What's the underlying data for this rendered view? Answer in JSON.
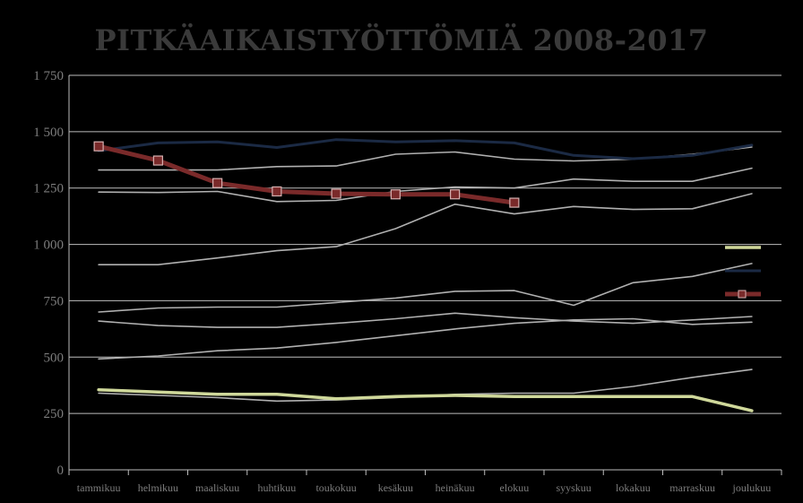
{
  "chart_data": {
    "type": "line",
    "title": "PITKÄAIKAISTYÖTTÖMIÄ 2008-2017",
    "xlabel": "",
    "ylabel": "",
    "categories": [
      "tammikuu",
      "helmikuu",
      "maaliskuu",
      "huhtikuu",
      "toukokuu",
      "kesäkuu",
      "heinäkuu",
      "elokuu",
      "syyskuu",
      "lokakuu",
      "marraskuu",
      "joulukuu"
    ],
    "ylim": [
      0,
      1750
    ],
    "yticks": [
      0,
      250,
      500,
      750,
      1000,
      1250,
      1500,
      1750
    ],
    "ytick_labels": [
      "0",
      "250",
      "500",
      "750",
      "1 000",
      "1 250",
      "1 500",
      "1 750"
    ],
    "grid": true,
    "legend": "right",
    "series": [
      {
        "color": "#cfd89a",
        "width": 3.5,
        "marker": "none",
        "values": [
          355,
          345,
          335,
          335,
          315,
          325,
          330,
          325,
          325,
          325,
          325,
          262
        ]
      },
      {
        "color": "#1b2a44",
        "width": 3,
        "marker": "none",
        "values": [
          1415,
          1450,
          1455,
          1430,
          1465,
          1455,
          1460,
          1450,
          1395,
          1380,
          1395,
          1440
        ]
      },
      {
        "color": "#b0b0b0",
        "width": 1.6,
        "marker": "none",
        "values": [
          340,
          330,
          320,
          305,
          310,
          320,
          335,
          340,
          340,
          370,
          410,
          445
        ]
      },
      {
        "color": "#b0b0b0",
        "width": 1.6,
        "marker": "none",
        "values": [
          492,
          505,
          528,
          540,
          565,
          595,
          625,
          650,
          665,
          670,
          645,
          655
        ]
      },
      {
        "color": "#b0b0b0",
        "width": 1.6,
        "marker": "none",
        "values": [
          660,
          640,
          632,
          632,
          650,
          670,
          695,
          675,
          660,
          650,
          665,
          680
        ]
      },
      {
        "color": "#b0b0b0",
        "width": 1.6,
        "marker": "none",
        "values": [
          700,
          718,
          722,
          722,
          742,
          762,
          792,
          795,
          730,
          830,
          858,
          915
        ]
      },
      {
        "color": "#b0b0b0",
        "width": 1.6,
        "marker": "none",
        "values": [
          910,
          910,
          940,
          972,
          990,
          1070,
          1178,
          1135,
          1168,
          1155,
          1158,
          1225
        ]
      },
      {
        "color": "#b0b0b0",
        "width": 1.6,
        "marker": "none",
        "values": [
          1232,
          1230,
          1235,
          1190,
          1195,
          1235,
          1255,
          1250,
          1290,
          1280,
          1280,
          1338
        ]
      },
      {
        "color": "#b0b0b0",
        "width": 1.6,
        "marker": "none",
        "values": [
          1330,
          1330,
          1330,
          1345,
          1348,
          1400,
          1410,
          1378,
          1370,
          1378,
          1400,
          1432
        ]
      },
      {
        "color": "#7a2a2a",
        "width": 5,
        "marker": "square",
        "values": [
          1435,
          1372,
          1272,
          1235,
          1225,
          1222,
          1222,
          1185,
          null,
          null,
          null,
          null
        ]
      }
    ]
  }
}
